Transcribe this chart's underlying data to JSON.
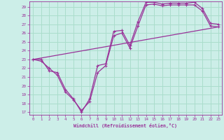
{
  "xlabel": "Windchill (Refroidissement éolien,°C)",
  "ylabel": "",
  "background_color": "#cceee8",
  "grid_color": "#aaddcc",
  "line_color": "#993399",
  "xlim": [
    -0.5,
    23.4
  ],
  "ylim": [
    16.7,
    29.6
  ],
  "xticks": [
    0,
    1,
    2,
    3,
    4,
    5,
    6,
    7,
    8,
    9,
    10,
    11,
    12,
    13,
    14,
    15,
    16,
    17,
    18,
    19,
    20,
    21,
    22,
    23
  ],
  "yticks": [
    17,
    18,
    19,
    20,
    21,
    22,
    23,
    24,
    25,
    26,
    27,
    28,
    29
  ],
  "line1_x": [
    0,
    1,
    2,
    3,
    4,
    5,
    6,
    7,
    8,
    9,
    10,
    11,
    12,
    13,
    14,
    15,
    16,
    17,
    18,
    19,
    20,
    21,
    22,
    23
  ],
  "line1_y": [
    23.0,
    22.8,
    22.0,
    21.2,
    19.3,
    18.4,
    17.2,
    18.2,
    21.5,
    22.3,
    25.7,
    26.0,
    24.3,
    26.8,
    29.2,
    29.3,
    29.1,
    29.2,
    29.2,
    29.2,
    29.2,
    28.5,
    26.8,
    26.7
  ],
  "line2_x": [
    0,
    1,
    2,
    3,
    4,
    5,
    6,
    7,
    8,
    9,
    10,
    11,
    12,
    13,
    14,
    15,
    16,
    17,
    18,
    19,
    20,
    21,
    22,
    23
  ],
  "line2_y": [
    23.0,
    23.0,
    21.7,
    21.5,
    19.6,
    18.5,
    17.0,
    18.5,
    22.3,
    22.5,
    26.2,
    26.3,
    24.6,
    27.3,
    29.5,
    29.5,
    29.3,
    29.4,
    29.4,
    29.4,
    29.5,
    28.8,
    27.1,
    27.0
  ],
  "line3_x": [
    0,
    23
  ],
  "line3_y": [
    23.0,
    26.7
  ]
}
